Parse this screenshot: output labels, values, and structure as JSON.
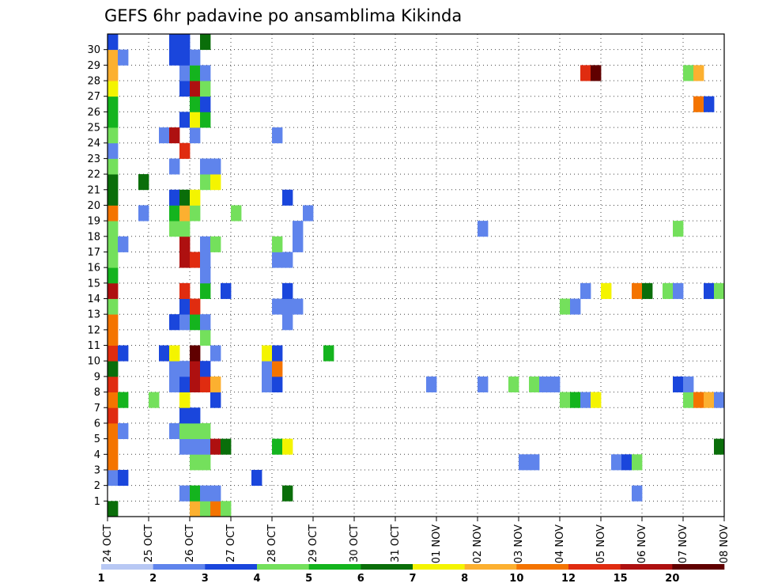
{
  "chart_data": {
    "type": "heatmap",
    "title": "GEFS 6hr padavine po ansamblima Kikinda",
    "x_tick_labels": [
      "24 OCT",
      "25 OCT",
      "26 OCT",
      "27 OCT",
      "28 OCT",
      "29 OCT",
      "30 OCT",
      "31 OCT",
      "01 NOV",
      "02 NOV",
      "03 NOV",
      "04 NOV",
      "05 NOV",
      "06 NOV",
      "07 NOV",
      "08 NOV"
    ],
    "y_tick_labels": [
      "1",
      "2",
      "3",
      "4",
      "5",
      "6",
      "7",
      "8",
      "9",
      "10",
      "11",
      "12",
      "13",
      "14",
      "15",
      "16",
      "17",
      "18",
      "19",
      "20",
      "21",
      "22",
      "23",
      "24",
      "25",
      "26",
      "27",
      "28",
      "29",
      "30"
    ],
    "x_steps": 60,
    "y_members": 31,
    "grid": true,
    "colorbar": {
      "labels": [
        "1",
        "2",
        "3",
        "4",
        "5",
        "6",
        "7",
        "8",
        "10",
        "12",
        "15",
        "20"
      ],
      "colors": [
        "#b8c8f4",
        "#5f84ec",
        "#1a46dc",
        "#74e05c",
        "#14b41e",
        "#0a6e0a",
        "#f4f400",
        "#fcb030",
        "#f47400",
        "#e02c10",
        "#ae1010",
        "#600000"
      ],
      "values": [
        1,
        2,
        3,
        4,
        5,
        6,
        7,
        8,
        10,
        12,
        15,
        20
      ]
    },
    "cells": [
      [
        0,
        0,
        5
      ],
      [
        0,
        2,
        1
      ],
      [
        0,
        3,
        8
      ],
      [
        0,
        4,
        8
      ],
      [
        0,
        5,
        8
      ],
      [
        0,
        6,
        9
      ],
      [
        0,
        7,
        8
      ],
      [
        0,
        8,
        9
      ],
      [
        0,
        9,
        5
      ],
      [
        0,
        10,
        9
      ],
      [
        0,
        11,
        8
      ],
      [
        0,
        12,
        8
      ],
      [
        0,
        13,
        3
      ],
      [
        0,
        14,
        10
      ],
      [
        0,
        15,
        4
      ],
      [
        0,
        16,
        3
      ],
      [
        0,
        17,
        3
      ],
      [
        0,
        18,
        3
      ],
      [
        0,
        19,
        8
      ],
      [
        0,
        20,
        5
      ],
      [
        0,
        21,
        5
      ],
      [
        0,
        22,
        3
      ],
      [
        0,
        23,
        1
      ],
      [
        0,
        24,
        3
      ],
      [
        0,
        25,
        4
      ],
      [
        0,
        26,
        4
      ],
      [
        0,
        27,
        6
      ],
      [
        0,
        28,
        7
      ],
      [
        0,
        29,
        7
      ],
      [
        0,
        30,
        2
      ],
      [
        1,
        2,
        2
      ],
      [
        1,
        5,
        1
      ],
      [
        1,
        7,
        4
      ],
      [
        1,
        10,
        2
      ],
      [
        1,
        17,
        1
      ],
      [
        1,
        29,
        1
      ],
      [
        3,
        19,
        1
      ],
      [
        3,
        21,
        5
      ],
      [
        4,
        7,
        3
      ],
      [
        5,
        10,
        2
      ],
      [
        5,
        24,
        1
      ],
      [
        6,
        5,
        1
      ],
      [
        6,
        8,
        1
      ],
      [
        6,
        9,
        1
      ],
      [
        6,
        10,
        6
      ],
      [
        6,
        12,
        2
      ],
      [
        6,
        18,
        3
      ],
      [
        6,
        19,
        4
      ],
      [
        6,
        20,
        2
      ],
      [
        6,
        22,
        1
      ],
      [
        6,
        24,
        10
      ],
      [
        6,
        29,
        2
      ],
      [
        6,
        30,
        2
      ],
      [
        7,
        1,
        1
      ],
      [
        7,
        4,
        1
      ],
      [
        7,
        5,
        3
      ],
      [
        7,
        6,
        2
      ],
      [
        7,
        7,
        6
      ],
      [
        7,
        8,
        2
      ],
      [
        7,
        9,
        1
      ],
      [
        7,
        12,
        1
      ],
      [
        7,
        13,
        2
      ],
      [
        7,
        14,
        9
      ],
      [
        7,
        16,
        10
      ],
      [
        7,
        17,
        10
      ],
      [
        7,
        18,
        3
      ],
      [
        7,
        19,
        7
      ],
      [
        7,
        20,
        5
      ],
      [
        7,
        23,
        9
      ],
      [
        7,
        25,
        2
      ],
      [
        7,
        27,
        2
      ],
      [
        7,
        28,
        1
      ],
      [
        7,
        29,
        2
      ],
      [
        7,
        30,
        2
      ],
      [
        8,
        0,
        7
      ],
      [
        8,
        1,
        4
      ],
      [
        8,
        3,
        3
      ],
      [
        8,
        4,
        1
      ],
      [
        8,
        5,
        3
      ],
      [
        8,
        6,
        2
      ],
      [
        8,
        8,
        10
      ],
      [
        8,
        9,
        10
      ],
      [
        8,
        10,
        11
      ],
      [
        8,
        12,
        4
      ],
      [
        8,
        13,
        9
      ],
      [
        8,
        16,
        9
      ],
      [
        8,
        19,
        3
      ],
      [
        8,
        20,
        6
      ],
      [
        8,
        24,
        1
      ],
      [
        8,
        25,
        6
      ],
      [
        8,
        26,
        4
      ],
      [
        8,
        27,
        10
      ],
      [
        8,
        28,
        4
      ],
      [
        8,
        29,
        1
      ],
      [
        9,
        0,
        3
      ],
      [
        9,
        1,
        1
      ],
      [
        9,
        3,
        3
      ],
      [
        9,
        4,
        1
      ],
      [
        9,
        5,
        3
      ],
      [
        9,
        8,
        9
      ],
      [
        9,
        9,
        2
      ],
      [
        9,
        11,
        3
      ],
      [
        9,
        12,
        1
      ],
      [
        9,
        14,
        4
      ],
      [
        9,
        15,
        1
      ],
      [
        9,
        16,
        1
      ],
      [
        9,
        17,
        1
      ],
      [
        9,
        21,
        3
      ],
      [
        9,
        22,
        1
      ],
      [
        9,
        25,
        4
      ],
      [
        9,
        26,
        2
      ],
      [
        9,
        27,
        3
      ],
      [
        9,
        28,
        1
      ],
      [
        9,
        30,
        5
      ],
      [
        10,
        0,
        8
      ],
      [
        10,
        1,
        1
      ],
      [
        10,
        4,
        10
      ],
      [
        10,
        7,
        2
      ],
      [
        10,
        8,
        7
      ],
      [
        10,
        10,
        1
      ],
      [
        10,
        17,
        3
      ],
      [
        10,
        21,
        6
      ],
      [
        10,
        22,
        1
      ],
      [
        11,
        0,
        3
      ],
      [
        11,
        4,
        5
      ],
      [
        11,
        14,
        2
      ],
      [
        12,
        19,
        3
      ],
      [
        14,
        2,
        2
      ],
      [
        15,
        8,
        1
      ],
      [
        15,
        9,
        1
      ],
      [
        15,
        10,
        6
      ],
      [
        16,
        4,
        4
      ],
      [
        16,
        8,
        2
      ],
      [
        16,
        9,
        8
      ],
      [
        16,
        10,
        2
      ],
      [
        16,
        13,
        1
      ],
      [
        16,
        16,
        1
      ],
      [
        16,
        17,
        3
      ],
      [
        16,
        24,
        1
      ],
      [
        17,
        1,
        5
      ],
      [
        17,
        4,
        6
      ],
      [
        17,
        12,
        1
      ],
      [
        17,
        13,
        1
      ],
      [
        17,
        14,
        2
      ],
      [
        17,
        16,
        1
      ],
      [
        17,
        20,
        2
      ],
      [
        18,
        13,
        1
      ],
      [
        18,
        17,
        1
      ],
      [
        18,
        18,
        1
      ],
      [
        19,
        19,
        1
      ],
      [
        21,
        10,
        4
      ],
      [
        31,
        8,
        1
      ],
      [
        36,
        8,
        1
      ],
      [
        36,
        18,
        1
      ],
      [
        39,
        8,
        3
      ],
      [
        40,
        3,
        1
      ],
      [
        41,
        3,
        1
      ],
      [
        41,
        8,
        3
      ],
      [
        42,
        8,
        1
      ],
      [
        43,
        8,
        1
      ],
      [
        44,
        7,
        3
      ],
      [
        44,
        13,
        3
      ],
      [
        45,
        7,
        4
      ],
      [
        45,
        13,
        1
      ],
      [
        46,
        7,
        1
      ],
      [
        46,
        14,
        1
      ],
      [
        46,
        28,
        9
      ],
      [
        47,
        7,
        6
      ],
      [
        47,
        28,
        11
      ],
      [
        48,
        14,
        6
      ],
      [
        49,
        3,
        1
      ],
      [
        50,
        3,
        2
      ],
      [
        51,
        1,
        1
      ],
      [
        51,
        3,
        3
      ],
      [
        51,
        14,
        8
      ],
      [
        52,
        14,
        5
      ],
      [
        54,
        14,
        3
      ],
      [
        55,
        8,
        2
      ],
      [
        55,
        14,
        1
      ],
      [
        55,
        18,
        3
      ],
      [
        56,
        7,
        3
      ],
      [
        56,
        8,
        1
      ],
      [
        56,
        28,
        3
      ],
      [
        57,
        7,
        8
      ],
      [
        57,
        26,
        8
      ],
      [
        57,
        28,
        7
      ],
      [
        58,
        7,
        7
      ],
      [
        58,
        14,
        2
      ],
      [
        58,
        26,
        2
      ],
      [
        59,
        4,
        5
      ],
      [
        59,
        7,
        1
      ],
      [
        59,
        14,
        3
      ]
    ]
  }
}
